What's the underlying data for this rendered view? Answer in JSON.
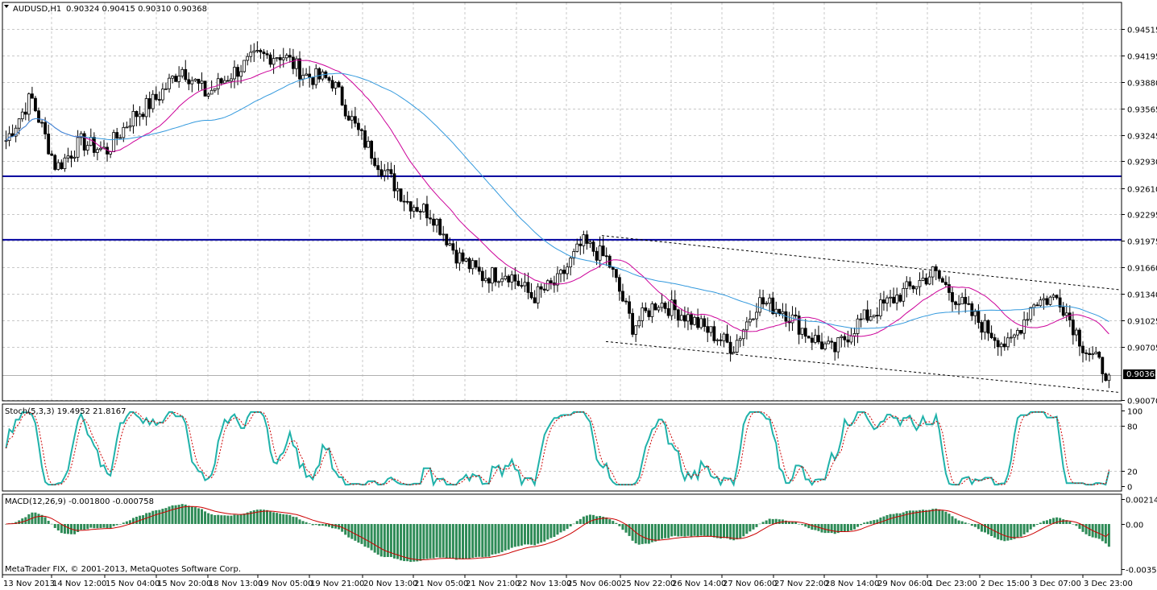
{
  "main": {
    "symbol_label": "AUDUSD,H1",
    "ohlc_label": "0.90324 0.90415 0.90310 0.90368",
    "price_levels": [
      "0.94515",
      "0.94195",
      "0.93880",
      "0.93565",
      "0.93245",
      "0.92930",
      "0.92610",
      "0.92295",
      "0.91975",
      "0.91660",
      "0.91340",
      "0.91025",
      "0.90705",
      "0.90070"
    ],
    "current_price": "0.90368",
    "copyright": "MetaTrader FIX, © 2001-2013, MetaQuotes Software Corp."
  },
  "stoch": {
    "label": "Stoch(5,3,3) 19.4952 21.8167",
    "levels": [
      "100",
      "80",
      "20",
      "0"
    ]
  },
  "macd": {
    "label": "MACD(12,26,9) -0.001800 -0.000758",
    "levels": [
      "0.002147",
      "0.00",
      "-0.003568"
    ]
  },
  "time_axis": [
    "13 Nov 2013",
    "14 Nov 12:00",
    "15 Nov 04:00",
    "15 Nov 20:00",
    "18 Nov 13:00",
    "19 Nov 05:00",
    "19 Nov 21:00",
    "20 Nov 13:00",
    "21 Nov 05:00",
    "21 Nov 21:00",
    "22 Nov 13:00",
    "25 Nov 06:00",
    "25 Nov 22:00",
    "26 Nov 14:00",
    "27 Nov 06:00",
    "27 Nov 22:00",
    "28 Nov 14:00",
    "29 Nov 06:00",
    "1 Dec 23:00",
    "2 Dec 15:00",
    "3 Dec 07:00",
    "3 Dec 23:00"
  ],
  "colors": {
    "candle_up": "#ffffff",
    "candle_down": "#000000",
    "horizontal_lines": "#0000a0",
    "ma_fast": "#cc0099",
    "ma_slow": "#3399dd",
    "stoch_main": "#20b2aa",
    "stoch_signal": "#cc0000",
    "macd_hist": "#2e8b57",
    "macd_signal": "#cc0000"
  },
  "chart_data": [
    {
      "type": "candlestick",
      "title": "AUDUSD,H1",
      "ylim": [
        0.9,
        0.947
      ],
      "horizontal_lines": [
        0.9275,
        0.9199
      ],
      "channel": {
        "upper": [
          [
            0.9204,
            0.9139
          ]
        ],
        "lower": [
          [
            0.9077,
            0.9016
          ]
        ]
      },
      "price_path": [
        {
          "t": "13 Nov 2013",
          "v": 0.9318
        },
        {
          "t": "13 Nov 22:00",
          "v": 0.937
        },
        {
          "t": "14 Nov 12:00",
          "v": 0.9285
        },
        {
          "t": "14 Nov 20:00",
          "v": 0.9316
        },
        {
          "t": "15 Nov 04:00",
          "v": 0.9305
        },
        {
          "t": "15 Nov 12:00",
          "v": 0.9345
        },
        {
          "t": "15 Nov 20:00",
          "v": 0.9368
        },
        {
          "t": "16 Nov",
          "v": 0.9405
        },
        {
          "t": "18 Nov 13:00",
          "v": 0.9373
        },
        {
          "t": "18 Nov 20:00",
          "v": 0.9398
        },
        {
          "t": "19 Nov 05:00",
          "v": 0.9418
        },
        {
          "t": "19 Nov 13:00",
          "v": 0.9421
        },
        {
          "t": "19 Nov 21:00",
          "v": 0.9395
        },
        {
          "t": "20 Nov 05:00",
          "v": 0.939
        },
        {
          "t": "20 Nov 13:00",
          "v": 0.933
        },
        {
          "t": "20 Nov 21:00",
          "v": 0.9285
        },
        {
          "t": "21 Nov 05:00",
          "v": 0.9245
        },
        {
          "t": "21 Nov 13:00",
          "v": 0.923
        },
        {
          "t": "21 Nov 21:00",
          "v": 0.918
        },
        {
          "t": "22 Nov 05:00",
          "v": 0.9155
        },
        {
          "t": "22 Nov 13:00",
          "v": 0.916
        },
        {
          "t": "22 Nov 21:00",
          "v": 0.913
        },
        {
          "t": "25 Nov 06:00",
          "v": 0.9148
        },
        {
          "t": "25 Nov 14:00",
          "v": 0.9195
        },
        {
          "t": "25 Nov 22:00",
          "v": 0.9175
        },
        {
          "t": "26 Nov 06:00",
          "v": 0.9095
        },
        {
          "t": "26 Nov 14:00",
          "v": 0.9125
        },
        {
          "t": "26 Nov 22:00",
          "v": 0.911
        },
        {
          "t": "27 Nov 06:00",
          "v": 0.909
        },
        {
          "t": "27 Nov 14:00",
          "v": 0.907
        },
        {
          "t": "27 Nov 22:00",
          "v": 0.9125
        },
        {
          "t": "28 Nov 06:00",
          "v": 0.9115
        },
        {
          "t": "28 Nov 14:00",
          "v": 0.9085
        },
        {
          "t": "28 Nov 22:00",
          "v": 0.9065
        },
        {
          "t": "29 Nov 06:00",
          "v": 0.91
        },
        {
          "t": "29 Nov 14:00",
          "v": 0.912
        },
        {
          "t": "1 Dec 15:00",
          "v": 0.914
        },
        {
          "t": "1 Dec 23:00",
          "v": 0.916
        },
        {
          "t": "2 Dec 07:00",
          "v": 0.9125
        },
        {
          "t": "2 Dec 15:00",
          "v": 0.9095
        },
        {
          "t": "2 Dec 23:00",
          "v": 0.907
        },
        {
          "t": "3 Dec 07:00",
          "v": 0.9125
        },
        {
          "t": "3 Dec 15:00",
          "v": 0.913
        },
        {
          "t": "3 Dec 19:00",
          "v": 0.907
        },
        {
          "t": "3 Dec 23:00",
          "v": 0.9037
        }
      ]
    },
    {
      "type": "line",
      "title": "Stoch(5,3,3)",
      "ylim": [
        0,
        100
      ],
      "levels": [
        20,
        80
      ],
      "series": [
        {
          "name": "Stoch(5,3,3)",
          "values": [
            19.4952,
            21.8167
          ]
        }
      ]
    },
    {
      "type": "bar",
      "title": "MACD(12,26,9)",
      "ylim": [
        -0.003568,
        0.002147
      ],
      "series": [
        {
          "name": "MACD",
          "values": [
            -0.0018
          ]
        },
        {
          "name": "Signal",
          "values": [
            -0.000758
          ]
        }
      ]
    }
  ]
}
